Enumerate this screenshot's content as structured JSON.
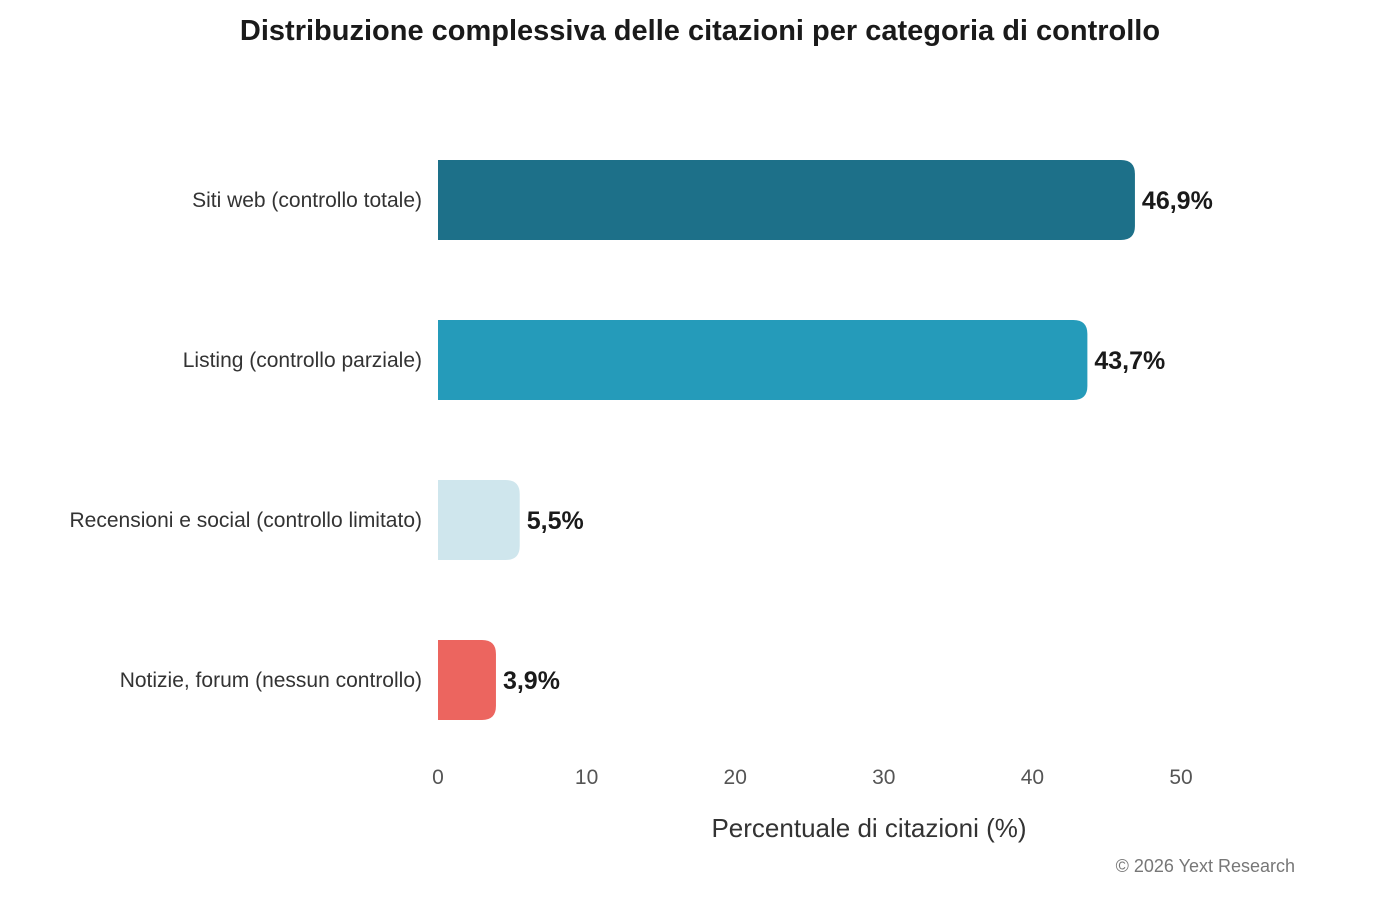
{
  "chart_data": {
    "type": "bar",
    "orientation": "horizontal",
    "title": "Distribuzione complessiva delle citazioni per categoria di controllo",
    "categories": [
      "Siti web (controllo totale)",
      "Listing (controllo parziale)",
      "Recensioni e social (controllo limitato)",
      "Notizie, forum (nessun controllo)"
    ],
    "values": [
      46.9,
      43.7,
      5.5,
      3.9
    ],
    "value_labels": [
      "46,9%",
      "43,7%",
      "5,5%",
      "3,9%"
    ],
    "colors": [
      "#1d7089",
      "#259bba",
      "#cfe6ed",
      "#ec655f"
    ],
    "xlabel": "Percentuale di citazioni (%)",
    "ylabel": "",
    "xlim": [
      0,
      50
    ],
    "xticks": [
      0,
      10,
      20,
      30,
      40,
      50
    ],
    "grid": false,
    "legend": "none"
  },
  "source_note": "© 2026 Yext Research"
}
